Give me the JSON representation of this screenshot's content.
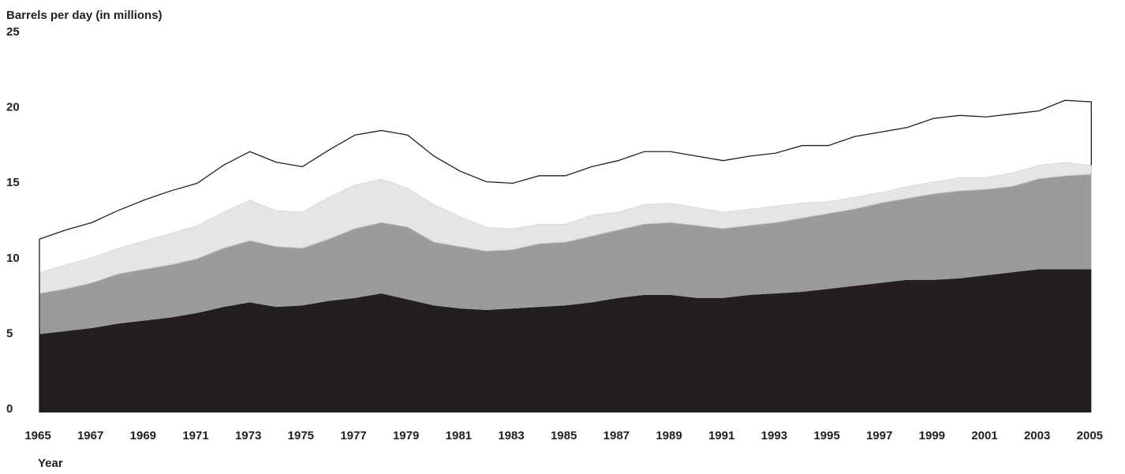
{
  "chart_data": {
    "type": "stacked_area",
    "y_label": "Barrels per day (in millions)",
    "x_label": "Year",
    "x": [
      1965,
      1966,
      1967,
      1968,
      1969,
      1970,
      1971,
      1972,
      1973,
      1974,
      1975,
      1976,
      1977,
      1978,
      1979,
      1980,
      1981,
      1982,
      1983,
      1984,
      1985,
      1986,
      1987,
      1988,
      1989,
      1990,
      1991,
      1992,
      1993,
      1994,
      1995,
      1996,
      1997,
      1998,
      1999,
      2000,
      2001,
      2002,
      2003,
      2004,
      2005
    ],
    "xlim": [
      1965,
      2005.5
    ],
    "xticks": [
      1965,
      1967,
      1969,
      1971,
      1973,
      1975,
      1977,
      1979,
      1981,
      1983,
      1985,
      1987,
      1989,
      1991,
      1993,
      1995,
      1997,
      1999,
      2001,
      2003,
      2005
    ],
    "ylim": [
      0,
      25
    ],
    "yticks": [
      0,
      5,
      10,
      15,
      20,
      25
    ],
    "series": [
      {
        "color": "#231f20",
        "values": [
          5.2,
          5.4,
          5.6,
          5.9,
          6.1,
          6.3,
          6.6,
          7.0,
          7.3,
          7.0,
          7.1,
          7.4,
          7.6,
          7.9,
          7.5,
          7.1,
          6.9,
          6.8,
          6.9,
          7.0,
          7.1,
          7.3,
          7.6,
          7.8,
          7.8,
          7.6,
          7.6,
          7.8,
          7.9,
          8.0,
          8.2,
          8.4,
          8.6,
          8.8,
          8.8,
          8.9,
          9.1,
          9.3,
          9.5,
          9.5,
          9.5
        ]
      },
      {
        "color": "#9b9b9e",
        "values": [
          2.7,
          2.8,
          3.0,
          3.3,
          3.4,
          3.5,
          3.6,
          3.9,
          4.1,
          4.0,
          3.8,
          4.1,
          4.6,
          4.7,
          4.8,
          4.2,
          4.1,
          3.9,
          3.9,
          4.2,
          4.2,
          4.4,
          4.5,
          4.7,
          4.8,
          4.8,
          4.6,
          4.6,
          4.7,
          4.9,
          5.0,
          5.1,
          5.3,
          5.4,
          5.7,
          5.8,
          5.7,
          5.7,
          6.0,
          6.2,
          6.3
        ]
      },
      {
        "color": "#e4e5e7",
        "values": [
          1.4,
          1.6,
          1.7,
          1.7,
          1.9,
          2.1,
          2.2,
          2.4,
          2.7,
          2.4,
          2.4,
          2.8,
          2.9,
          2.9,
          2.6,
          2.5,
          2.0,
          1.6,
          1.4,
          1.3,
          1.2,
          1.4,
          1.2,
          1.3,
          1.3,
          1.2,
          1.1,
          1.1,
          1.1,
          1.0,
          0.8,
          0.8,
          0.7,
          0.8,
          0.8,
          0.9,
          0.8,
          0.9,
          0.9,
          0.9,
          0.6
        ]
      },
      {
        "color": "#ffffff",
        "values": [
          2.2,
          2.3,
          2.3,
          2.5,
          2.7,
          2.8,
          2.8,
          3.1,
          3.2,
          3.2,
          3.0,
          3.1,
          3.3,
          3.2,
          3.5,
          3.2,
          3.0,
          3.0,
          3.0,
          3.2,
          3.2,
          3.2,
          3.4,
          3.5,
          3.4,
          3.4,
          3.4,
          3.5,
          3.5,
          3.8,
          3.7,
          4.0,
          4.0,
          3.9,
          4.2,
          4.1,
          4.0,
          3.9,
          3.6,
          4.1,
          4.2
        ]
      }
    ]
  }
}
